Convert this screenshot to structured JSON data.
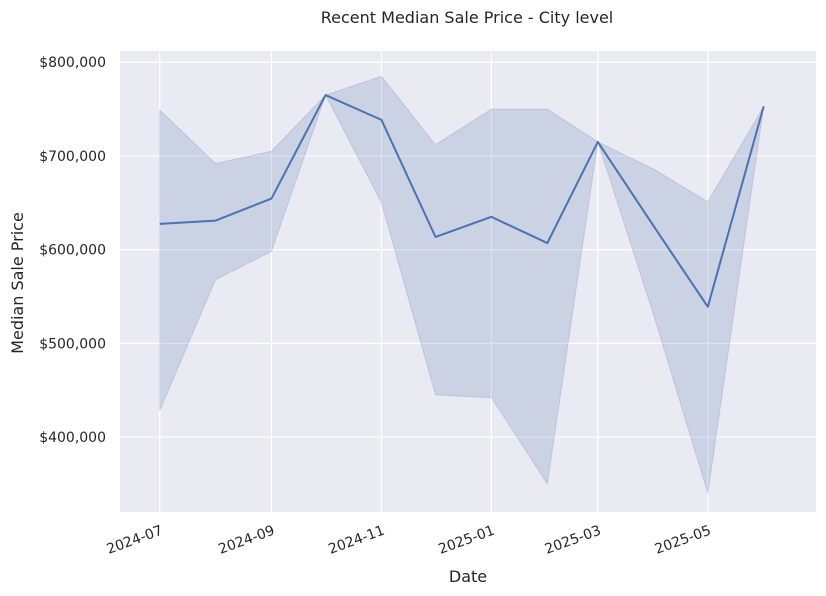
{
  "chart_data": {
    "type": "line",
    "title": "Recent Median Sale Price - City level",
    "xlabel": "Date",
    "ylabel": "Median Sale Price",
    "x": [
      "2024-07-01",
      "2024-08-01",
      "2024-09-01",
      "2024-10-01",
      "2024-11-01",
      "2024-12-01",
      "2025-01-01",
      "2025-02-01",
      "2025-03-01",
      "2025-04-01",
      "2025-05-01",
      "2025-06-01"
    ],
    "series": [
      {
        "values": [
          627500,
          631000,
          654500,
          765000,
          738500,
          613500,
          635000,
          607000,
          715000,
          625000,
          539000,
          753000
        ],
        "band_upper": [
          749000,
          692000,
          705000,
          765000,
          785000,
          712000,
          750000,
          750000,
          715000,
          686000,
          651000,
          753000
        ],
        "band_lower": [
          428000,
          568000,
          598000,
          765000,
          650000,
          445000,
          442000,
          350000,
          715000,
          530000,
          340000,
          753000
        ]
      }
    ],
    "ylim": [
      320000,
      812000
    ],
    "xlim": [
      "2024-06-09",
      "2025-06-30"
    ],
    "x_ticks": [
      {
        "date": "2024-07-01",
        "label": "2024-07"
      },
      {
        "date": "2024-09-01",
        "label": "2024-09"
      },
      {
        "date": "2024-11-01",
        "label": "2024-11"
      },
      {
        "date": "2025-01-01",
        "label": "2025-01"
      },
      {
        "date": "2025-03-01",
        "label": "2025-03"
      },
      {
        "date": "2025-05-01",
        "label": "2025-05"
      }
    ],
    "y_ticks": [
      {
        "value": 400000,
        "label": "$400,000"
      },
      {
        "value": 500000,
        "label": "$500,000"
      },
      {
        "value": 600000,
        "label": "$600,000"
      },
      {
        "value": 700000,
        "label": "$700,000"
      },
      {
        "value": 800000,
        "label": "$800,000"
      }
    ],
    "grid": true,
    "colors": {
      "line": "#4c72b0",
      "band": "#4c72b0",
      "plot_background": "#eaeaf2",
      "grid": "#ffffff"
    }
  }
}
